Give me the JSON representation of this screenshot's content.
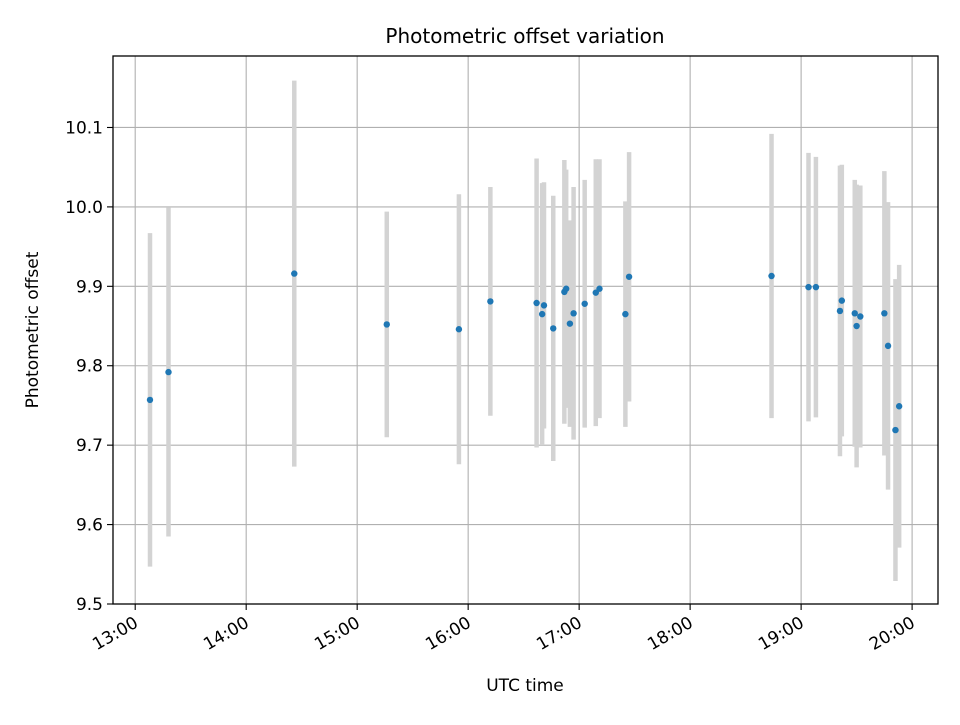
{
  "chart_data": {
    "type": "scatter",
    "title": "Photometric offset variation",
    "xlabel": "UTC time",
    "ylabel": "Photometric offset",
    "xlim": [
      "12:48",
      "20:14"
    ],
    "ylim": [
      9.5,
      10.19
    ],
    "xticks": [
      "13:00",
      "14:00",
      "15:00",
      "16:00",
      "17:00",
      "18:00",
      "19:00",
      "20:00"
    ],
    "yticks": [
      9.5,
      9.6,
      9.7,
      9.8,
      9.9,
      10.0,
      10.1
    ],
    "ytick_labels": [
      "9.5",
      "9.6",
      "9.7",
      "9.8",
      "9.9",
      "10.0",
      "10.1"
    ],
    "grid": true,
    "series": [
      {
        "marker_color": "#1f77b4",
        "errorbar_color": "#d3d3d3",
        "points": [
          {
            "t": "13:08",
            "y": 9.757,
            "err": 0.21
          },
          {
            "t": "13:18",
            "y": 9.792,
            "err": 0.207
          },
          {
            "t": "14:26",
            "y": 9.916,
            "err": 0.243
          },
          {
            "t": "15:16",
            "y": 9.852,
            "err": 0.142
          },
          {
            "t": "15:55",
            "y": 9.846,
            "err": 0.17
          },
          {
            "t": "16:12",
            "y": 9.881,
            "err": 0.144
          },
          {
            "t": "16:37",
            "y": 9.879,
            "err": 0.182
          },
          {
            "t": "16:40",
            "y": 9.865,
            "err": 0.165
          },
          {
            "t": "16:41",
            "y": 9.876,
            "err": 0.155
          },
          {
            "t": "16:46",
            "y": 9.847,
            "err": 0.167
          },
          {
            "t": "16:52",
            "y": 9.893,
            "err": 0.166
          },
          {
            "t": "16:53",
            "y": 9.897,
            "err": 0.15
          },
          {
            "t": "16:55",
            "y": 9.853,
            "err": 0.13
          },
          {
            "t": "16:57",
            "y": 9.866,
            "err": 0.159
          },
          {
            "t": "17:03",
            "y": 9.878,
            "err": 0.156
          },
          {
            "t": "17:09",
            "y": 9.892,
            "err": 0.168
          },
          {
            "t": "17:11",
            "y": 9.897,
            "err": 0.163
          },
          {
            "t": "17:25",
            "y": 9.865,
            "err": 0.142
          },
          {
            "t": "17:27",
            "y": 9.912,
            "err": 0.157
          },
          {
            "t": "18:44",
            "y": 9.913,
            "err": 0.179
          },
          {
            "t": "19:04",
            "y": 9.899,
            "err": 0.169
          },
          {
            "t": "19:08",
            "y": 9.899,
            "err": 0.164
          },
          {
            "t": "19:21",
            "y": 9.869,
            "err": 0.183
          },
          {
            "t": "19:22",
            "y": 9.882,
            "err": 0.171
          },
          {
            "t": "19:29",
            "y": 9.866,
            "err": 0.168
          },
          {
            "t": "19:30",
            "y": 9.85,
            "err": 0.178
          },
          {
            "t": "19:32",
            "y": 9.862,
            "err": 0.165
          },
          {
            "t": "19:45",
            "y": 9.866,
            "err": 0.179
          },
          {
            "t": "19:47",
            "y": 9.825,
            "err": 0.181
          },
          {
            "t": "19:51",
            "y": 9.719,
            "err": 0.19
          },
          {
            "t": "19:53",
            "y": 9.749,
            "err": 0.178
          }
        ]
      }
    ]
  }
}
